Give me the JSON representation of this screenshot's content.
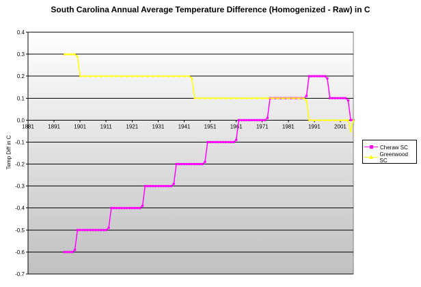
{
  "chart_data": {
    "type": "line",
    "title": "South Carolina Annual Average Temperature Difference (Homogenized - Raw) in C",
    "xlabel": "",
    "ylabel": "Temp Diff in C",
    "x_ticks": [
      1881,
      1891,
      1901,
      1911,
      1921,
      1931,
      1941,
      1951,
      1961,
      1971,
      1981,
      1991,
      2001
    ],
    "xlim": [
      1881,
      2006
    ],
    "ylim": [
      -0.7,
      0.4
    ],
    "y_ticks": [
      0.4,
      0.3,
      0.2,
      0.1,
      0.0,
      -0.1,
      -0.2,
      -0.3,
      -0.4,
      -0.5,
      -0.6,
      -0.7
    ],
    "grid": true,
    "legend_position": "right",
    "series": [
      {
        "name": "Cheraw SC",
        "color": "#ff00ff",
        "marker": "square",
        "x": [
          1895,
          1896,
          1897,
          1898,
          1899,
          1900,
          1901,
          1902,
          1903,
          1904,
          1905,
          1906,
          1907,
          1908,
          1909,
          1910,
          1911,
          1912,
          1913,
          1914,
          1915,
          1916,
          1917,
          1918,
          1919,
          1920,
          1921,
          1922,
          1923,
          1924,
          1925,
          1926,
          1927,
          1928,
          1929,
          1930,
          1931,
          1932,
          1933,
          1934,
          1935,
          1936,
          1937,
          1938,
          1939,
          1940,
          1941,
          1942,
          1943,
          1944,
          1945,
          1946,
          1947,
          1948,
          1949,
          1950,
          1951,
          1952,
          1953,
          1954,
          1955,
          1956,
          1957,
          1958,
          1959,
          1960,
          1961,
          1962,
          1963,
          1964,
          1965,
          1966,
          1967,
          1968,
          1969,
          1970,
          1971,
          1972,
          1973,
          1974,
          1975,
          1976,
          1977,
          1978,
          1979,
          1980,
          1981,
          1982,
          1983,
          1984,
          1985,
          1986,
          1987,
          1988,
          1989,
          1990,
          1991,
          1992,
          1993,
          1994,
          1995,
          1996,
          1997,
          1998,
          1999,
          2000,
          2001,
          2002,
          2003,
          2004,
          2005,
          2006
        ],
        "values": [
          -0.6,
          -0.6,
          -0.6,
          -0.6,
          -0.59,
          -0.5,
          -0.5,
          -0.5,
          -0.5,
          -0.5,
          -0.5,
          -0.5,
          -0.5,
          -0.5,
          -0.5,
          -0.5,
          -0.5,
          -0.49,
          -0.4,
          -0.4,
          -0.4,
          -0.4,
          -0.4,
          -0.4,
          -0.4,
          -0.4,
          -0.4,
          -0.4,
          -0.4,
          -0.4,
          -0.39,
          -0.3,
          -0.3,
          -0.3,
          -0.3,
          -0.3,
          -0.3,
          -0.3,
          -0.3,
          -0.3,
          -0.3,
          -0.3,
          -0.29,
          -0.2,
          -0.2,
          -0.2,
          -0.2,
          -0.2,
          -0.2,
          -0.2,
          -0.2,
          -0.2,
          -0.2,
          -0.2,
          -0.19,
          -0.1,
          -0.1,
          -0.1,
          -0.1,
          -0.1,
          -0.1,
          -0.1,
          -0.1,
          -0.1,
          -0.1,
          -0.1,
          -0.09,
          0.0,
          0.0,
          0.0,
          0.0,
          0.0,
          0.0,
          0.0,
          0.0,
          0.0,
          0.0,
          0.0,
          0.01,
          0.1,
          0.1,
          0.1,
          0.1,
          0.1,
          0.1,
          0.1,
          0.1,
          0.1,
          0.1,
          0.1,
          0.1,
          0.1,
          0.1,
          0.11,
          0.2,
          0.2,
          0.2,
          0.2,
          0.2,
          0.2,
          0.2,
          0.19,
          0.1,
          0.1,
          0.1,
          0.1,
          0.1,
          0.1,
          0.1,
          0.09,
          0.0,
          0.0
        ]
      },
      {
        "name": "Greenwood SC",
        "color": "#ffff00",
        "marker": "triangle",
        "x": [
          1895,
          1896,
          1897,
          1898,
          1899,
          1900,
          1901,
          1903,
          1905,
          1907,
          1909,
          1911,
          1913,
          1915,
          1917,
          1919,
          1921,
          1923,
          1925,
          1927,
          1929,
          1931,
          1933,
          1935,
          1937,
          1939,
          1941,
          1943,
          1944,
          1945,
          1947,
          1949,
          1951,
          1953,
          1955,
          1957,
          1959,
          1961,
          1963,
          1965,
          1967,
          1969,
          1971,
          1973,
          1975,
          1977,
          1979,
          1981,
          1983,
          1985,
          1987,
          1988,
          1989,
          1991,
          1993,
          1995,
          1997,
          1999,
          2001,
          2003,
          2004,
          2005,
          2006
        ],
        "values": [
          0.3,
          0.3,
          0.3,
          0.3,
          0.3,
          0.29,
          0.2,
          0.2,
          0.2,
          0.2,
          0.2,
          0.2,
          0.2,
          0.2,
          0.2,
          0.2,
          0.2,
          0.2,
          0.2,
          0.2,
          0.2,
          0.2,
          0.2,
          0.2,
          0.2,
          0.2,
          0.2,
          0.2,
          0.19,
          0.1,
          0.1,
          0.1,
          0.1,
          0.1,
          0.1,
          0.1,
          0.1,
          0.1,
          0.1,
          0.1,
          0.1,
          0.1,
          0.1,
          0.1,
          0.1,
          0.1,
          0.1,
          0.1,
          0.1,
          0.1,
          0.1,
          0.09,
          0.0,
          0.0,
          0.0,
          0.0,
          0.0,
          0.0,
          0.0,
          0.0,
          0.0,
          -0.05,
          0.0
        ]
      }
    ]
  },
  "ui": {
    "title": "South Carolina Annual Average Temperature Difference (Homogenized - Raw) in C",
    "y_axis_label": "Temp Diff in C",
    "legend_series_1": "Cheraw SC",
    "legend_series_2": "Greenwood SC",
    "plot_bg_top": "#ffffff",
    "plot_bg_bottom": "#c0c0c0"
  }
}
